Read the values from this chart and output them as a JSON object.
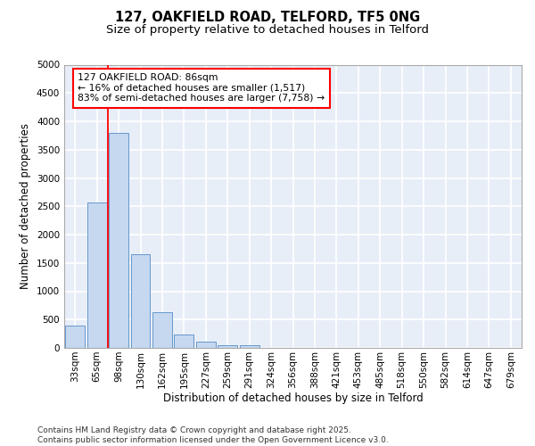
{
  "title_line1": "127, OAKFIELD ROAD, TELFORD, TF5 0NG",
  "title_line2": "Size of property relative to detached houses in Telford",
  "xlabel": "Distribution of detached houses by size in Telford",
  "ylabel": "Number of detached properties",
  "categories": [
    "33sqm",
    "65sqm",
    "98sqm",
    "130sqm",
    "162sqm",
    "195sqm",
    "227sqm",
    "259sqm",
    "291sqm",
    "324sqm",
    "356sqm",
    "388sqm",
    "421sqm",
    "453sqm",
    "485sqm",
    "518sqm",
    "550sqm",
    "582sqm",
    "614sqm",
    "647sqm",
    "679sqm"
  ],
  "values": [
    400,
    2560,
    3800,
    1660,
    625,
    240,
    105,
    55,
    50,
    0,
    0,
    0,
    0,
    0,
    0,
    0,
    0,
    0,
    0,
    0,
    0
  ],
  "bar_color": "#c5d8f0",
  "bar_edge_color": "#6699cc",
  "red_line_x": 1.5,
  "annotation_title": "127 OAKFIELD ROAD: 86sqm",
  "annotation_line1": "← 16% of detached houses are smaller (1,517)",
  "annotation_line2": "83% of semi-detached houses are larger (7,758) →",
  "ylim": [
    0,
    5000
  ],
  "yticks": [
    0,
    500,
    1000,
    1500,
    2000,
    2500,
    3000,
    3500,
    4000,
    4500,
    5000
  ],
  "background_color": "#e8eef8",
  "grid_color": "#ffffff",
  "footer_line1": "Contains HM Land Registry data © Crown copyright and database right 2025.",
  "footer_line2": "Contains public sector information licensed under the Open Government Licence v3.0.",
  "title_fontsize": 10.5,
  "subtitle_fontsize": 9.5,
  "axis_label_fontsize": 8.5,
  "tick_fontsize": 7.5,
  "annotation_fontsize": 7.8,
  "footer_fontsize": 6.5
}
